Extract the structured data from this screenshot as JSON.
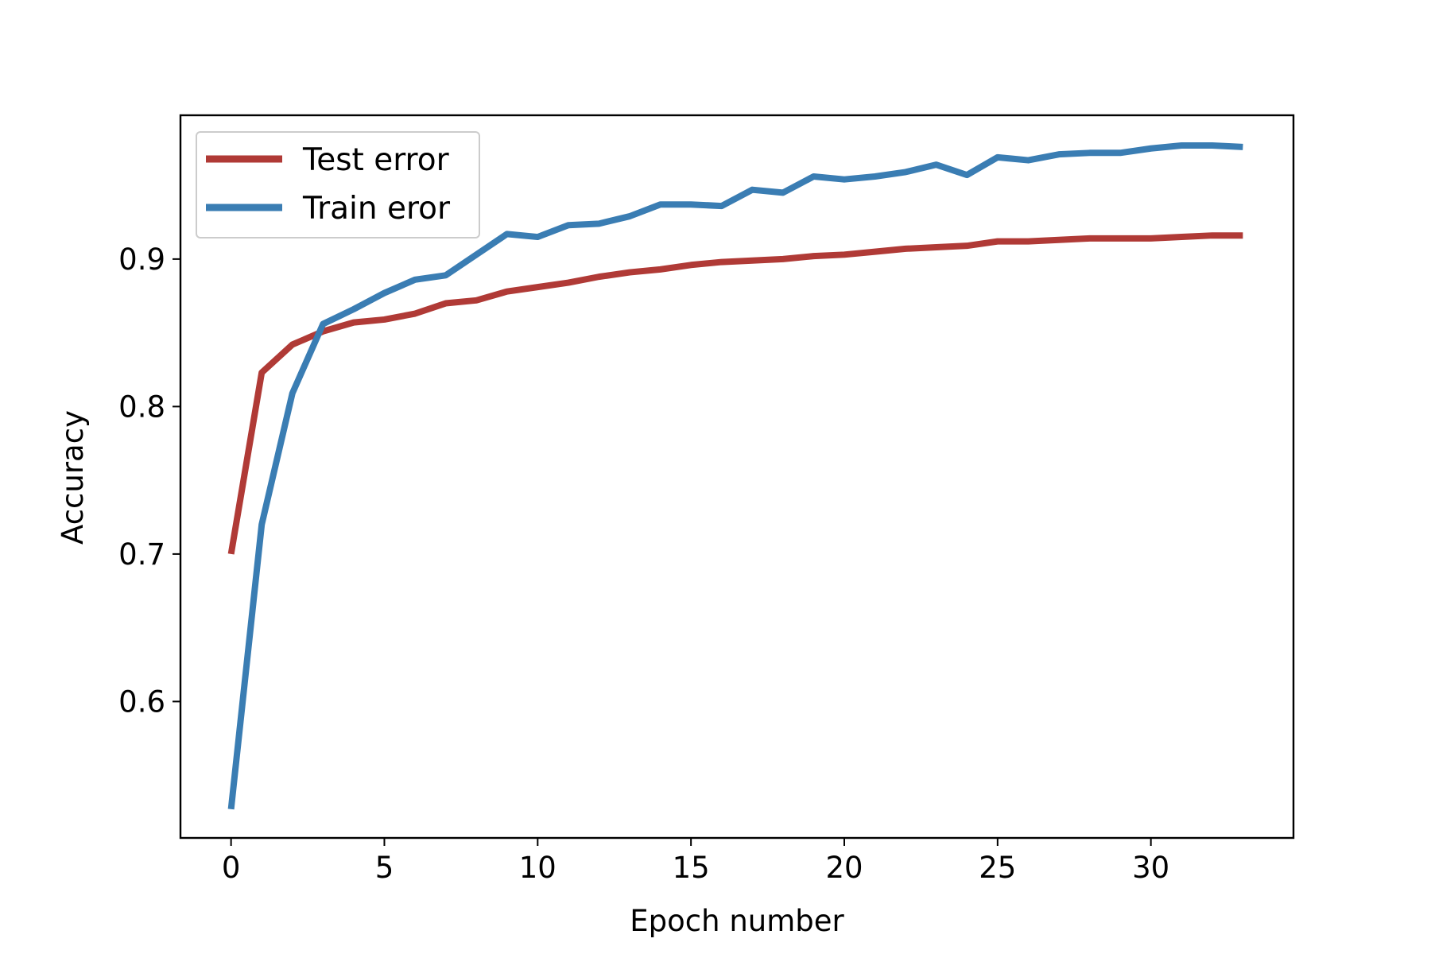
{
  "chart_data": {
    "type": "line",
    "title": "",
    "xlabel": "Epoch number",
    "ylabel": "Accuracy",
    "xlim": [
      -1.65,
      34.65
    ],
    "ylim": [
      0.5075,
      0.9975
    ],
    "xticks": [
      0,
      5,
      10,
      15,
      20,
      25,
      30
    ],
    "xtick_labels": [
      "0",
      "5",
      "10",
      "15",
      "20",
      "25",
      "30"
    ],
    "yticks": [
      0.6,
      0.7,
      0.8,
      0.9
    ],
    "ytick_labels": [
      "0.6",
      "0.7",
      "0.8",
      "0.9"
    ],
    "grid": false,
    "legend_position": "upper-left",
    "x": [
      0,
      1,
      2,
      3,
      4,
      5,
      6,
      7,
      8,
      9,
      10,
      11,
      12,
      13,
      14,
      15,
      16,
      17,
      18,
      19,
      20,
      21,
      22,
      23,
      24,
      25,
      26,
      27,
      28,
      29,
      30,
      31,
      32,
      33
    ],
    "series": [
      {
        "name": "Test error",
        "color": "#b03a36",
        "values": [
          0.7,
          0.823,
          0.842,
          0.851,
          0.857,
          0.859,
          0.863,
          0.87,
          0.872,
          0.878,
          0.881,
          0.884,
          0.888,
          0.891,
          0.893,
          0.896,
          0.898,
          0.899,
          0.9,
          0.902,
          0.903,
          0.905,
          0.907,
          0.908,
          0.909,
          0.912,
          0.912,
          0.913,
          0.914,
          0.914,
          0.914,
          0.915,
          0.916,
          0.916
        ]
      },
      {
        "name": "Train eror",
        "color": "#3a7db3",
        "values": [
          0.527,
          0.72,
          0.809,
          0.856,
          0.866,
          0.877,
          0.886,
          0.889,
          0.903,
          0.917,
          0.915,
          0.923,
          0.924,
          0.929,
          0.937,
          0.937,
          0.936,
          0.947,
          0.945,
          0.956,
          0.954,
          0.956,
          0.959,
          0.964,
          0.957,
          0.969,
          0.967,
          0.971,
          0.972,
          0.972,
          0.975,
          0.977,
          0.977,
          0.976
        ]
      }
    ]
  }
}
